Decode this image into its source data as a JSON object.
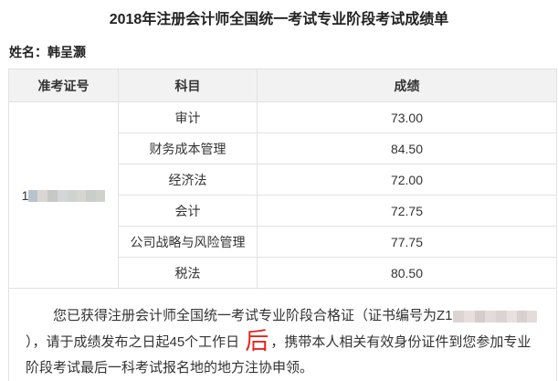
{
  "page": {
    "title": "2018年注册会计师全国统一考试专业阶段考试成绩单",
    "name_line": "姓名：韩呈灏"
  },
  "table": {
    "headers": {
      "ticket": "准考证号",
      "subject": "科目",
      "score": "成绩"
    },
    "admission_no_visible_prefix": "1",
    "rows": [
      {
        "subject": "审计",
        "score": "73.00"
      },
      {
        "subject": "财务成本管理",
        "score": "84.50"
      },
      {
        "subject": "经济法",
        "score": "72.00"
      },
      {
        "subject": "会计",
        "score": "72.75"
      },
      {
        "subject": "公司战略与风险管理",
        "score": "77.75"
      },
      {
        "subject": "税法",
        "score": "80.50"
      }
    ]
  },
  "notice": {
    "part1": "您已获得注册会计师全国统一考试专业阶段合格证（证书编号为Z1",
    "part2": "），请于成绩发布之日起45个工作日 ",
    "highlight": "后",
    "part3": "，携带本人相关有效身份证件到您参加专业阶段考试最后一科考试报名地的地方注协申领。"
  },
  "colors": {
    "highlight_red": "#e6251e",
    "header_bg": "#f2f2f2",
    "border": "#e2e2e2"
  }
}
